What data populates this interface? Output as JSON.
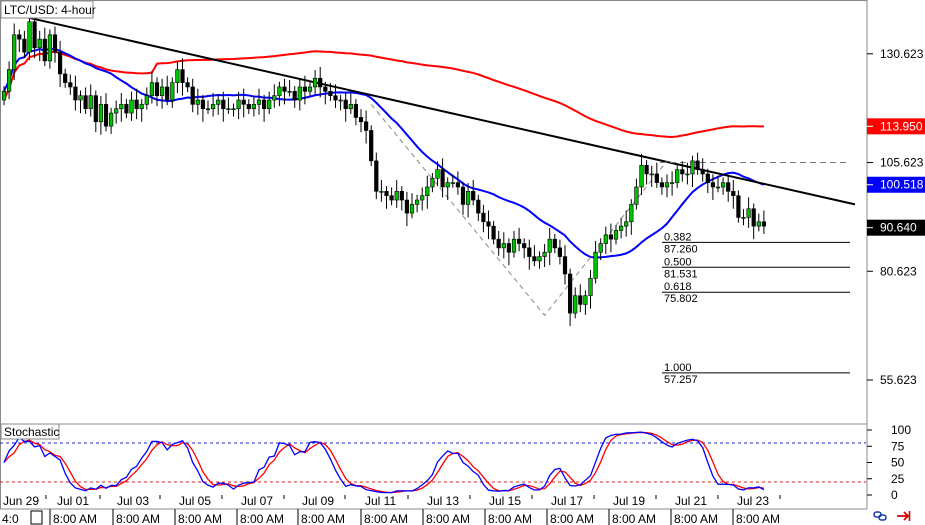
{
  "chart_data": {
    "type": "candlestick",
    "title": "LTC/USD: 4-hour",
    "price_axis": {
      "ticks": [
        130.623,
        105.623,
        80.623,
        55.623
      ],
      "ylim": [
        45.5,
        143
      ]
    },
    "price_tags": [
      {
        "label": "113.950",
        "value": 113.95,
        "bg": "#ff0000",
        "fg": "#ffffff"
      },
      {
        "label": "100.518",
        "value": 100.518,
        "bg": "#0000ff",
        "fg": "#ffffff"
      },
      {
        "label": "90.640",
        "value": 90.64,
        "bg": "#000000",
        "fg": "#ffffff"
      }
    ],
    "x_axis": {
      "date_labels": [
        "Jun 29",
        "Jul 01",
        "Jul 03",
        "Jul 05",
        "Jul 07",
        "Jul 09",
        "Jul 11",
        "Jul 13",
        "Jul 15",
        "Jul 17",
        "Jul 19",
        "Jul 21",
        "Jul 23"
      ],
      "time_labels": [
        "4:0",
        "8:00 AM",
        "8:00 AM",
        "8:00 AM",
        "8:00 AM",
        "8:00 AM",
        "8:00 AM",
        "8:00 AM",
        "8:00 AM",
        "8:00 AM",
        "8:00 AM",
        "8:00 AM",
        "8:00 AM"
      ]
    },
    "candles": {
      "count": 150,
      "closes": [
        122,
        127,
        135,
        134,
        131,
        138,
        132,
        134,
        129,
        135,
        131,
        126,
        124,
        123,
        120,
        121,
        118,
        121,
        115,
        119,
        114,
        117,
        118,
        119,
        117,
        120,
        118,
        119,
        121,
        124,
        121,
        123,
        120,
        124,
        127,
        124,
        123,
        119,
        120,
        118,
        118,
        119,
        120,
        118,
        118,
        118,
        120,
        119,
        118,
        119,
        120,
        118,
        120,
        121,
        123,
        122,
        122,
        120,
        123,
        122,
        123,
        125,
        123,
        122,
        121,
        120,
        120,
        118,
        119,
        116,
        115,
        113,
        106,
        99,
        99,
        98,
        97,
        99,
        97,
        94,
        96,
        97,
        98,
        100,
        102,
        104,
        100,
        101,
        101,
        100,
        96,
        99,
        97,
        94,
        92,
        91,
        88,
        86,
        87,
        85,
        88,
        87,
        86,
        84,
        83,
        84,
        85,
        88,
        86,
        84,
        80,
        71,
        75,
        73,
        75,
        79,
        85,
        87,
        89,
        88,
        90,
        91,
        92,
        96,
        100,
        105,
        103,
        103,
        101,
        100,
        101,
        101,
        104,
        103,
        103,
        106,
        104,
        103,
        101,
        100,
        100,
        101,
        99,
        98,
        93,
        93,
        95,
        91,
        92,
        91
      ],
      "swing_high": 140,
      "swing_low": 70.5
    },
    "moving_averages": [
      {
        "color": "#0000ff",
        "value_labeled": 100.518
      },
      {
        "color": "#ff0000",
        "value_labeled": 113.95
      }
    ],
    "trendline": {
      "color": "#000000",
      "start_value": 140,
      "end_value": 96
    },
    "resistance_level": 105.623,
    "fibonacci": [
      {
        "ratio": "0.382",
        "price": "87.260"
      },
      {
        "ratio": "0.500",
        "price": "81.531"
      },
      {
        "ratio": "0.618",
        "price": "75.802"
      },
      {
        "ratio": "1.000",
        "price": "57.257"
      }
    ],
    "stochastic": {
      "label": "Stochastic",
      "ticks": [
        100,
        75,
        50,
        25,
        0
      ],
      "ylim": [
        0,
        100
      ],
      "upper": 80,
      "lower": 20,
      "k_color": "#0000ff",
      "d_color": "#ff0000"
    }
  }
}
